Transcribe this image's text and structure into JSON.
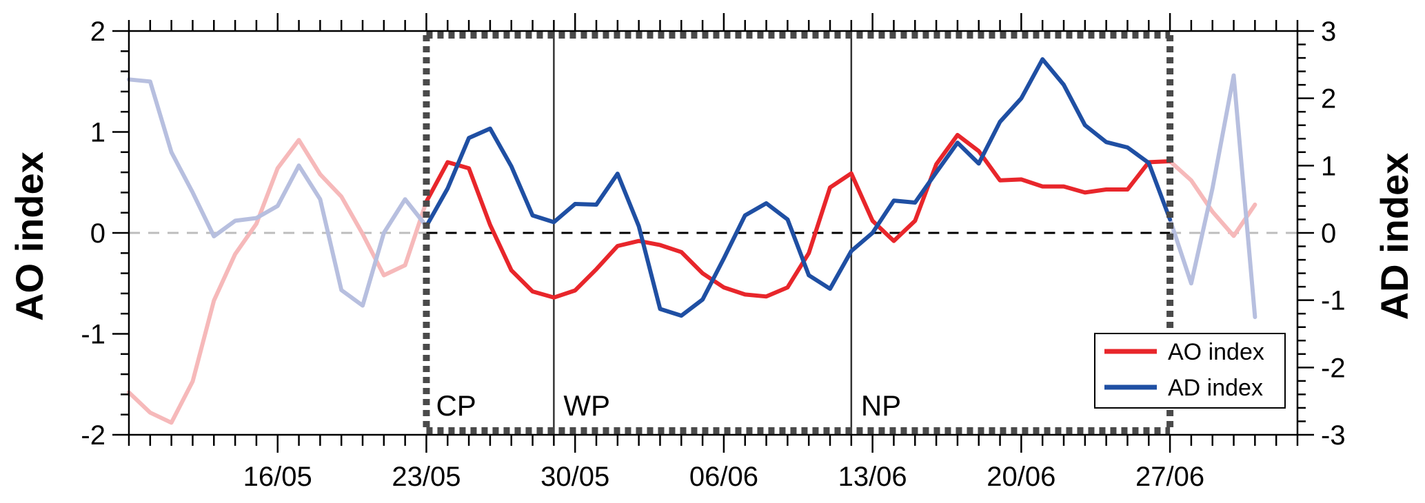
{
  "chart_data": {
    "type": "line",
    "ylabel_left": "AO index",
    "ylabel_right": "AD index",
    "ylim_left": [
      -2,
      2
    ],
    "ylim_right": [
      -3,
      3
    ],
    "left_ticks": [
      "-2",
      "-1",
      "0",
      "1",
      "2"
    ],
    "right_ticks": [
      "-3",
      "-2",
      "-1",
      "0",
      "1",
      "2",
      "3"
    ],
    "x_day_range": [
      9,
      64
    ],
    "x_ticks": [
      {
        "label": "16/05",
        "day": 16
      },
      {
        "label": "23/05",
        "day": 23
      },
      {
        "label": "30/05",
        "day": 30
      },
      {
        "label": "06/06",
        "day": 37
      },
      {
        "label": "13/06",
        "day": 44
      },
      {
        "label": "20/06",
        "day": 51
      },
      {
        "label": "27/06",
        "day": 58
      }
    ],
    "highlight_window_days": [
      23,
      58
    ],
    "period_dividers_days": [
      29,
      43
    ],
    "period_labels": [
      {
        "label": "CP",
        "day": 23
      },
      {
        "label": "WP",
        "day": 29
      },
      {
        "label": "NP",
        "day": 43
      }
    ],
    "start_day": 9,
    "series": [
      {
        "name": "AO index",
        "axis": "left",
        "color": "#e8262b",
        "faded_color": "#f6b9ba",
        "values": [
          -1.58,
          -1.78,
          -1.88,
          -1.47,
          -0.67,
          -0.21,
          0.09,
          0.64,
          0.92,
          0.58,
          0.36,
          -0.01,
          -0.42,
          -0.32,
          0.31,
          0.7,
          0.64,
          0.08,
          -0.37,
          -0.58,
          -0.64,
          -0.57,
          -0.36,
          -0.13,
          -0.08,
          -0.12,
          -0.19,
          -0.4,
          -0.54,
          -0.61,
          -0.63,
          -0.54,
          -0.2,
          0.45,
          0.59,
          0.12,
          -0.08,
          0.12,
          0.68,
          0.97,
          0.81,
          0.52,
          0.53,
          0.46,
          0.46,
          0.4,
          0.43,
          0.43,
          0.7,
          0.71,
          0.52,
          0.21,
          -0.03,
          0.28
        ]
      },
      {
        "name": "AD index",
        "axis": "right",
        "color": "#1f4fa3",
        "faded_color": "#b7bfdf",
        "values": [
          2.28,
          2.25,
          1.2,
          0.6,
          -0.05,
          0.18,
          0.22,
          0.4,
          1.0,
          0.5,
          -0.85,
          -1.08,
          0.0,
          0.5,
          0.1,
          0.66,
          1.41,
          1.55,
          0.99,
          0.26,
          0.16,
          0.43,
          0.42,
          0.88,
          0.1,
          -1.13,
          -1.23,
          -0.99,
          -0.38,
          0.26,
          0.44,
          0.2,
          -0.63,
          -0.83,
          -0.27,
          0.0,
          0.48,
          0.45,
          0.9,
          1.34,
          1.03,
          1.65,
          2.0,
          2.58,
          2.2,
          1.6,
          1.35,
          1.27,
          1.04,
          0.2,
          -0.75,
          0.66,
          2.34,
          -1.25
        ]
      }
    ],
    "legend_position": "bottom-right",
    "grid": false
  }
}
